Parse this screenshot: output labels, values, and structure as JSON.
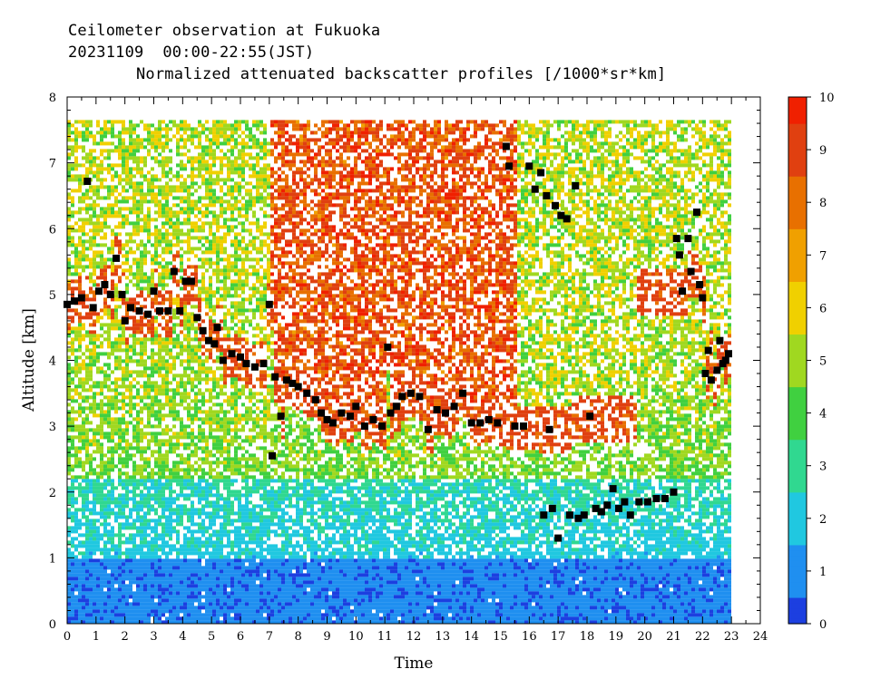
{
  "header": {
    "line1": "Ceilometer observation at Fukuoka",
    "line2": "20231109  00:00-22:55(JST)",
    "line3": "Normalized attenuated backscatter profiles [/1000*sr*km]"
  },
  "chart_data": {
    "type": "heatmap",
    "xlabel": "Time",
    "ylabel": "Altitude [km]",
    "xlim": [
      0,
      24
    ],
    "ylim": [
      0,
      8
    ],
    "x_ticks": [
      "0",
      "1",
      "2",
      "3",
      "4",
      "5",
      "6",
      "7",
      "8",
      "9",
      "10",
      "11",
      "12",
      "13",
      "14",
      "15",
      "16",
      "17",
      "18",
      "19",
      "20",
      "21",
      "22",
      "23",
      "24"
    ],
    "y_ticks": [
      "0",
      "1",
      "2",
      "3",
      "4",
      "5",
      "6",
      "7",
      "8"
    ],
    "data_time_range_hours": [
      0,
      22.92
    ],
    "data_altitude_max_km": 7.65,
    "colorbar": {
      "range": [
        0,
        10
      ],
      "ticks": [
        "0",
        "1",
        "2",
        "3",
        "4",
        "5",
        "6",
        "7",
        "8",
        "9",
        "10"
      ],
      "colors": [
        "#1c3fe0",
        "#1f8ff0",
        "#20c8e0",
        "#30d890",
        "#40d040",
        "#a0d820",
        "#f0d000",
        "#f0a000",
        "#e87000",
        "#e04010",
        "#f02000"
      ]
    },
    "cloud_base_marker_color": "#000000",
    "cloud_base_km": [
      {
        "t": 0.0,
        "z": 4.85
      },
      {
        "t": 0.25,
        "z": 4.9
      },
      {
        "t": 0.5,
        "z": 4.95
      },
      {
        "t": 0.7,
        "z": 6.72
      },
      {
        "t": 0.9,
        "z": 4.8
      },
      {
        "t": 1.1,
        "z": 5.05
      },
      {
        "t": 1.3,
        "z": 5.15
      },
      {
        "t": 1.5,
        "z": 5.0
      },
      {
        "t": 1.7,
        "z": 5.55
      },
      {
        "t": 1.9,
        "z": 5.0
      },
      {
        "t": 2.0,
        "z": 4.6
      },
      {
        "t": 2.2,
        "z": 4.8
      },
      {
        "t": 2.5,
        "z": 4.75
      },
      {
        "t": 2.8,
        "z": 4.7
      },
      {
        "t": 3.0,
        "z": 5.05
      },
      {
        "t": 3.2,
        "z": 4.75
      },
      {
        "t": 3.5,
        "z": 4.75
      },
      {
        "t": 3.7,
        "z": 5.35
      },
      {
        "t": 3.9,
        "z": 4.75
      },
      {
        "t": 4.1,
        "z": 5.2
      },
      {
        "t": 4.3,
        "z": 5.2
      },
      {
        "t": 4.5,
        "z": 4.65
      },
      {
        "t": 4.7,
        "z": 4.45
      },
      {
        "t": 4.9,
        "z": 4.3
      },
      {
        "t": 5.1,
        "z": 4.25
      },
      {
        "t": 5.2,
        "z": 4.5
      },
      {
        "t": 5.4,
        "z": 4.0
      },
      {
        "t": 5.7,
        "z": 4.1
      },
      {
        "t": 6.0,
        "z": 4.05
      },
      {
        "t": 6.2,
        "z": 3.95
      },
      {
        "t": 6.5,
        "z": 3.9
      },
      {
        "t": 6.8,
        "z": 3.95
      },
      {
        "t": 7.0,
        "z": 4.85
      },
      {
        "t": 7.1,
        "z": 2.55
      },
      {
        "t": 7.2,
        "z": 3.75
      },
      {
        "t": 7.4,
        "z": 3.15
      },
      {
        "t": 7.6,
        "z": 3.7
      },
      {
        "t": 7.8,
        "z": 3.65
      },
      {
        "t": 8.0,
        "z": 3.6
      },
      {
        "t": 8.3,
        "z": 3.5
      },
      {
        "t": 8.6,
        "z": 3.4
      },
      {
        "t": 8.8,
        "z": 3.2
      },
      {
        "t": 9.0,
        "z": 3.1
      },
      {
        "t": 9.2,
        "z": 3.05
      },
      {
        "t": 9.5,
        "z": 3.2
      },
      {
        "t": 9.8,
        "z": 3.15
      },
      {
        "t": 10.0,
        "z": 3.3
      },
      {
        "t": 10.3,
        "z": 3.0
      },
      {
        "t": 10.6,
        "z": 3.1
      },
      {
        "t": 10.9,
        "z": 3.0
      },
      {
        "t": 11.1,
        "z": 4.2
      },
      {
        "t": 11.2,
        "z": 3.2
      },
      {
        "t": 11.4,
        "z": 3.3
      },
      {
        "t": 11.6,
        "z": 3.45
      },
      {
        "t": 11.9,
        "z": 3.5
      },
      {
        "t": 12.2,
        "z": 3.45
      },
      {
        "t": 12.5,
        "z": 2.95
      },
      {
        "t": 12.8,
        "z": 3.25
      },
      {
        "t": 13.1,
        "z": 3.2
      },
      {
        "t": 13.4,
        "z": 3.3
      },
      {
        "t": 13.7,
        "z": 3.5
      },
      {
        "t": 14.0,
        "z": 3.05
      },
      {
        "t": 14.3,
        "z": 3.05
      },
      {
        "t": 14.6,
        "z": 3.1
      },
      {
        "t": 14.9,
        "z": 3.05
      },
      {
        "t": 15.2,
        "z": 7.25
      },
      {
        "t": 15.3,
        "z": 6.95
      },
      {
        "t": 15.5,
        "z": 3.0
      },
      {
        "t": 15.8,
        "z": 3.0
      },
      {
        "t": 16.0,
        "z": 6.95
      },
      {
        "t": 16.2,
        "z": 6.6
      },
      {
        "t": 16.4,
        "z": 6.85
      },
      {
        "t": 16.5,
        "z": 1.65
      },
      {
        "t": 16.6,
        "z": 6.5
      },
      {
        "t": 16.7,
        "z": 2.95
      },
      {
        "t": 16.8,
        "z": 1.75
      },
      {
        "t": 16.9,
        "z": 6.35
      },
      {
        "t": 17.0,
        "z": 1.3
      },
      {
        "t": 17.1,
        "z": 6.2
      },
      {
        "t": 17.3,
        "z": 6.15
      },
      {
        "t": 17.4,
        "z": 1.65
      },
      {
        "t": 17.6,
        "z": 6.65
      },
      {
        "t": 17.7,
        "z": 1.6
      },
      {
        "t": 17.9,
        "z": 1.65
      },
      {
        "t": 18.1,
        "z": 3.15
      },
      {
        "t": 18.3,
        "z": 1.75
      },
      {
        "t": 18.5,
        "z": 1.7
      },
      {
        "t": 18.7,
        "z": 1.8
      },
      {
        "t": 18.9,
        "z": 2.05
      },
      {
        "t": 19.1,
        "z": 1.75
      },
      {
        "t": 19.3,
        "z": 1.85
      },
      {
        "t": 19.5,
        "z": 1.65
      },
      {
        "t": 19.8,
        "z": 1.85
      },
      {
        "t": 20.1,
        "z": 1.85
      },
      {
        "t": 20.4,
        "z": 1.9
      },
      {
        "t": 20.7,
        "z": 1.9
      },
      {
        "t": 21.0,
        "z": 2.0
      },
      {
        "t": 21.1,
        "z": 5.85
      },
      {
        "t": 21.2,
        "z": 5.6
      },
      {
        "t": 21.3,
        "z": 5.05
      },
      {
        "t": 21.5,
        "z": 5.85
      },
      {
        "t": 21.6,
        "z": 5.35
      },
      {
        "t": 21.8,
        "z": 6.25
      },
      {
        "t": 21.9,
        "z": 5.15
      },
      {
        "t": 22.0,
        "z": 4.95
      },
      {
        "t": 22.1,
        "z": 3.8
      },
      {
        "t": 22.2,
        "z": 4.15
      },
      {
        "t": 22.3,
        "z": 3.7
      },
      {
        "t": 22.5,
        "z": 3.85
      },
      {
        "t": 22.6,
        "z": 4.3
      },
      {
        "t": 22.7,
        "z": 3.95
      },
      {
        "t": 22.8,
        "z": 4.0
      },
      {
        "t": 22.9,
        "z": 4.1
      }
    ]
  }
}
